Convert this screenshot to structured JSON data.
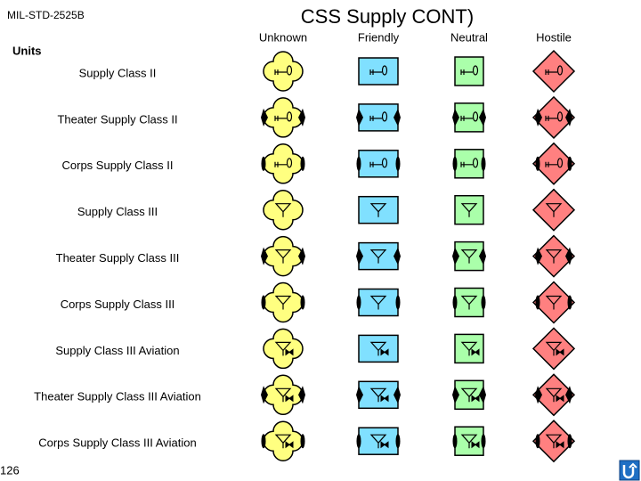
{
  "header": {
    "standard": "MIL-STD-2525B",
    "title": "CSS Supply CONT)",
    "section": "Units"
  },
  "columns": [
    "Unknown",
    "Friendly",
    "Neutral",
    "Hostile"
  ],
  "rows": [
    "Supply Class II",
    "Theater Supply Class II",
    "Corps Supply Class II",
    "Supply Class III",
    "Theater Supply Class III",
    "Corps Supply Class III",
    "Supply Class III Aviation",
    "Theater Supply Class III Aviation",
    "Corps Supply Class III Aviation"
  ],
  "footer": {
    "page": "126"
  }
}
